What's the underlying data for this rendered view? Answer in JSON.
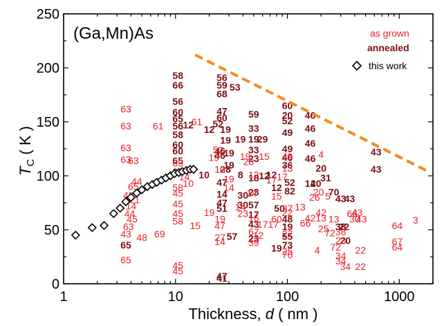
{
  "chart_data": {
    "type": "scatter",
    "title": "(Ga,Mn)As",
    "xlabel": {
      "prefix": "Thickness, ",
      "var": "d",
      "suffix": "  ( nm )"
    },
    "ylabel": {
      "var": "T",
      "sub": "C",
      "suffix": " ( K )"
    },
    "xscale": "log",
    "xlim": [
      1,
      2000
    ],
    "ylim": [
      0,
      250
    ],
    "xticks": [
      1,
      10,
      100,
      1000
    ],
    "xtick_labels": [
      "1",
      "10",
      "100",
      "1000"
    ],
    "yticks": [
      0,
      50,
      100,
      150,
      200,
      250
    ],
    "ytick_labels": [
      "0",
      "50",
      "100",
      "150",
      "200",
      "250"
    ],
    "grid": false,
    "legend_position": "top-right",
    "legend": [
      "as grown",
      "annealed",
      "this work"
    ],
    "colors": {
      "as_grown": "#e8202a",
      "annealed": "#7a0c12",
      "this_work": "#000000",
      "trend": "#f58a1f"
    },
    "series": [
      {
        "name": "as grown",
        "style": "numeric labels (reference numbers)",
        "points": [
          {
            "x": 3.6,
            "y": 162,
            "label": "63"
          },
          {
            "x": 3.6,
            "y": 146,
            "label": "63"
          },
          {
            "x": 3.6,
            "y": 126,
            "label": "63"
          },
          {
            "x": 3.6,
            "y": 115,
            "label": "63"
          },
          {
            "x": 4.2,
            "y": 114,
            "label": "63"
          },
          {
            "x": 4.5,
            "y": 95,
            "label": "44"
          },
          {
            "x": 4.2,
            "y": 90,
            "label": "65"
          },
          {
            "x": 3.8,
            "y": 82,
            "label": "48"
          },
          {
            "x": 4.3,
            "y": 78,
            "label": "21"
          },
          {
            "x": 4.0,
            "y": 72,
            "label": "14"
          },
          {
            "x": 3.9,
            "y": 65,
            "label": "44"
          },
          {
            "x": 4.1,
            "y": 60,
            "label": "45"
          },
          {
            "x": 3.8,
            "y": 53,
            "label": "63"
          },
          {
            "x": 3.6,
            "y": 46,
            "label": "43"
          },
          {
            "x": 3.6,
            "y": 22,
            "label": "65"
          },
          {
            "x": 5.0,
            "y": 43,
            "label": "48"
          },
          {
            "x": 7.2,
            "y": 46,
            "label": "69"
          },
          {
            "x": 7.0,
            "y": 146,
            "label": "61"
          },
          {
            "x": 10.5,
            "y": 112,
            "label": "63"
          },
          {
            "x": 10.5,
            "y": 89,
            "label": "58"
          },
          {
            "x": 10.5,
            "y": 84,
            "label": "45"
          },
          {
            "x": 10.5,
            "y": 74,
            "label": "45"
          },
          {
            "x": 10.5,
            "y": 65,
            "label": "45"
          },
          {
            "x": 10.5,
            "y": 58,
            "label": "58"
          },
          {
            "x": 10.5,
            "y": 17,
            "label": "45"
          },
          {
            "x": 10.5,
            "y": 12,
            "label": "45"
          },
          {
            "x": 12.0,
            "y": 99,
            "label": "14"
          },
          {
            "x": 13.0,
            "y": 93,
            "label": "10"
          },
          {
            "x": 15.0,
            "y": 54,
            "label": "15"
          },
          {
            "x": 15.5,
            "y": 150,
            "label": "61"
          },
          {
            "x": 25,
            "y": 106,
            "label": "10"
          },
          {
            "x": 22,
            "y": 117,
            "label": "19"
          },
          {
            "x": 24,
            "y": 124,
            "label": "52"
          },
          {
            "x": 20,
            "y": 66,
            "label": "19"
          },
          {
            "x": 25,
            "y": 60,
            "label": "19"
          },
          {
            "x": 25,
            "y": 54,
            "label": "47"
          },
          {
            "x": 25,
            "y": 43,
            "label": "27"
          },
          {
            "x": 25,
            "y": 39,
            "label": "14"
          },
          {
            "x": 30,
            "y": 89,
            "label": "14"
          },
          {
            "x": 30,
            "y": 97,
            "label": "19"
          },
          {
            "x": 38,
            "y": 71,
            "label": "14"
          },
          {
            "x": 40,
            "y": 65,
            "label": "23"
          },
          {
            "x": 42,
            "y": 118,
            "label": "19"
          },
          {
            "x": 45,
            "y": 113,
            "label": "28"
          },
          {
            "x": 50,
            "y": 101,
            "label": "12"
          },
          {
            "x": 48,
            "y": 84,
            "label": "14"
          },
          {
            "x": 50,
            "y": 61,
            "label": "16"
          },
          {
            "x": 50,
            "y": 48,
            "label": "67"
          },
          {
            "x": 50,
            "y": 38,
            "label": "39"
          },
          {
            "x": 55,
            "y": 45,
            "label": "12"
          },
          {
            "x": 60,
            "y": 55,
            "label": "17"
          },
          {
            "x": 62,
            "y": 118,
            "label": "15"
          },
          {
            "x": 72,
            "y": 96,
            "label": "17"
          },
          {
            "x": 80,
            "y": 81,
            "label": "15"
          },
          {
            "x": 80,
            "y": 60,
            "label": "60"
          },
          {
            "x": 75,
            "y": 55,
            "label": "17"
          },
          {
            "x": 90,
            "y": 99,
            "label": "17"
          },
          {
            "x": 100,
            "y": 118,
            "label": "40"
          },
          {
            "x": 100,
            "y": 107,
            "label": "13"
          },
          {
            "x": 100,
            "y": 66,
            "label": "22"
          },
          {
            "x": 100,
            "y": 46,
            "label": "27"
          },
          {
            "x": 100,
            "y": 30,
            "label": "25"
          },
          {
            "x": 100,
            "y": 27,
            "label": "70"
          },
          {
            "x": 100,
            "y": 70,
            "label": "37"
          },
          {
            "x": 130,
            "y": 71,
            "label": "13"
          },
          {
            "x": 145,
            "y": 56,
            "label": "66"
          },
          {
            "x": 160,
            "y": 61,
            "label": "42"
          },
          {
            "x": 175,
            "y": 80,
            "label": "26"
          },
          {
            "x": 190,
            "y": 85,
            "label": "20"
          },
          {
            "x": 200,
            "y": 120,
            "label": "4"
          },
          {
            "x": 230,
            "y": 81,
            "label": "5"
          },
          {
            "x": 200,
            "y": 61,
            "label": "13"
          },
          {
            "x": 200,
            "y": 66,
            "label": "42"
          },
          {
            "x": 210,
            "y": 51,
            "label": "25"
          },
          {
            "x": 185,
            "y": 31,
            "label": "4"
          },
          {
            "x": 240,
            "y": 47,
            "label": "72"
          },
          {
            "x": 260,
            "y": 60,
            "label": "13"
          },
          {
            "x": 270,
            "y": 34,
            "label": "72"
          },
          {
            "x": 300,
            "y": 48,
            "label": "38"
          },
          {
            "x": 300,
            "y": 40,
            "label": "23"
          },
          {
            "x": 300,
            "y": 26,
            "label": "34"
          },
          {
            "x": 300,
            "y": 21,
            "label": "34"
          },
          {
            "x": 330,
            "y": 16,
            "label": "34"
          },
          {
            "x": 380,
            "y": 65,
            "label": "66"
          },
          {
            "x": 400,
            "y": 60,
            "label": "30"
          },
          {
            "x": 420,
            "y": 66,
            "label": "43"
          },
          {
            "x": 460,
            "y": 60,
            "label": "43"
          },
          {
            "x": 450,
            "y": 31,
            "label": "22"
          },
          {
            "x": 450,
            "y": 16,
            "label": "22"
          },
          {
            "x": 960,
            "y": 54,
            "label": "64"
          },
          {
            "x": 960,
            "y": 39,
            "label": "67"
          },
          {
            "x": 960,
            "y": 34,
            "label": "64"
          },
          {
            "x": 1400,
            "y": 59,
            "label": "3"
          }
        ]
      },
      {
        "name": "annealed",
        "style": "bold numeric labels (reference numbers)",
        "points": [
          {
            "x": 3.6,
            "y": 36,
            "label": "65"
          },
          {
            "x": 10.5,
            "y": 193,
            "label": "58"
          },
          {
            "x": 10.5,
            "y": 184,
            "label": "66"
          },
          {
            "x": 10.5,
            "y": 169,
            "label": "56"
          },
          {
            "x": 10.5,
            "y": 159,
            "label": "60"
          },
          {
            "x": 10.5,
            "y": 153,
            "label": "65"
          },
          {
            "x": 10.5,
            "y": 146,
            "label": "56"
          },
          {
            "x": 10.5,
            "y": 138,
            "label": "58"
          },
          {
            "x": 10.5,
            "y": 129,
            "label": "60"
          },
          {
            "x": 10.5,
            "y": 123,
            "label": "60"
          },
          {
            "x": 10.5,
            "y": 114,
            "label": "65"
          },
          {
            "x": 10.5,
            "y": 104,
            "label": "66"
          },
          {
            "x": 13.0,
            "y": 147,
            "label": "12"
          },
          {
            "x": 18.0,
            "y": 101,
            "label": "10"
          },
          {
            "x": 20,
            "y": 143,
            "label": "12"
          },
          {
            "x": 24,
            "y": 148,
            "label": "52"
          },
          {
            "x": 26,
            "y": 191,
            "label": "56"
          },
          {
            "x": 26,
            "y": 184,
            "label": "59"
          },
          {
            "x": 26,
            "y": 176,
            "label": "68"
          },
          {
            "x": 26,
            "y": 160,
            "label": "47"
          },
          {
            "x": 26,
            "y": 154,
            "label": "60"
          },
          {
            "x": 28,
            "y": 143,
            "label": "19"
          },
          {
            "x": 28,
            "y": 133,
            "label": "19"
          },
          {
            "x": 25,
            "y": 123,
            "label": "46"
          },
          {
            "x": 25,
            "y": 119,
            "label": "46"
          },
          {
            "x": 28,
            "y": 106,
            "label": "28"
          },
          {
            "x": 26,
            "y": 94,
            "label": "47"
          },
          {
            "x": 26,
            "y": 83,
            "label": "14"
          },
          {
            "x": 26,
            "y": 75,
            "label": "47"
          },
          {
            "x": 26,
            "y": 70,
            "label": "51"
          },
          {
            "x": 30,
            "y": 121,
            "label": "19"
          },
          {
            "x": 30,
            "y": 110,
            "label": "19"
          },
          {
            "x": 32,
            "y": 44,
            "label": "57"
          },
          {
            "x": 26,
            "y": 7,
            "label": "47"
          },
          {
            "x": 26,
            "y": 5,
            "label": "41"
          },
          {
            "x": 34,
            "y": 182,
            "label": "53"
          },
          {
            "x": 38,
            "y": 134,
            "label": "19"
          },
          {
            "x": 38,
            "y": 101,
            "label": "8"
          },
          {
            "x": 40,
            "y": 82,
            "label": "30"
          },
          {
            "x": 40,
            "y": 73,
            "label": "30"
          },
          {
            "x": 50,
            "y": 157,
            "label": "59"
          },
          {
            "x": 50,
            "y": 144,
            "label": "33"
          },
          {
            "x": 50,
            "y": 134,
            "label": "19"
          },
          {
            "x": 50,
            "y": 124,
            "label": "33"
          },
          {
            "x": 50,
            "y": 116,
            "label": "23"
          },
          {
            "x": 50,
            "y": 98,
            "label": "18"
          },
          {
            "x": 50,
            "y": 85,
            "label": "23"
          },
          {
            "x": 50,
            "y": 73,
            "label": "57"
          },
          {
            "x": 50,
            "y": 64,
            "label": "17"
          },
          {
            "x": 50,
            "y": 55,
            "label": "43"
          },
          {
            "x": 50,
            "y": 42,
            "label": "23"
          },
          {
            "x": 60,
            "y": 134,
            "label": "29"
          },
          {
            "x": 62,
            "y": 100,
            "label": "12"
          },
          {
            "x": 72,
            "y": 101,
            "label": "12"
          },
          {
            "x": 80,
            "y": 89,
            "label": "12"
          },
          {
            "x": 80,
            "y": 33,
            "label": "19"
          },
          {
            "x": 85,
            "y": 70,
            "label": "50"
          },
          {
            "x": 100,
            "y": 165,
            "label": "60"
          },
          {
            "x": 100,
            "y": 156,
            "label": "20"
          },
          {
            "x": 100,
            "y": 151,
            "label": "52"
          },
          {
            "x": 100,
            "y": 140,
            "label": "49"
          },
          {
            "x": 100,
            "y": 125,
            "label": "49"
          },
          {
            "x": 100,
            "y": 117,
            "label": "46"
          },
          {
            "x": 100,
            "y": 110,
            "label": "36"
          },
          {
            "x": 105,
            "y": 94,
            "label": "52"
          },
          {
            "x": 105,
            "y": 86,
            "label": "82"
          },
          {
            "x": 100,
            "y": 60,
            "label": "48"
          },
          {
            "x": 100,
            "y": 53,
            "label": "19"
          },
          {
            "x": 100,
            "y": 44,
            "label": "55"
          },
          {
            "x": 100,
            "y": 36,
            "label": "73"
          },
          {
            "x": 160,
            "y": 156,
            "label": "46"
          },
          {
            "x": 160,
            "y": 144,
            "label": "46"
          },
          {
            "x": 160,
            "y": 130,
            "label": "46"
          },
          {
            "x": 160,
            "y": 116,
            "label": "46"
          },
          {
            "x": 160,
            "y": 93,
            "label": "14"
          },
          {
            "x": 180,
            "y": 93,
            "label": "20"
          },
          {
            "x": 200,
            "y": 107,
            "label": "20"
          },
          {
            "x": 220,
            "y": 98,
            "label": "31"
          },
          {
            "x": 260,
            "y": 85,
            "label": "70"
          },
          {
            "x": 300,
            "y": 79,
            "label": "43"
          },
          {
            "x": 360,
            "y": 79,
            "label": "43"
          },
          {
            "x": 300,
            "y": 53,
            "label": "38"
          },
          {
            "x": 320,
            "y": 53,
            "label": "22"
          },
          {
            "x": 330,
            "y": 40,
            "label": "20"
          },
          {
            "x": 620,
            "y": 122,
            "label": "43"
          },
          {
            "x": 620,
            "y": 106,
            "label": "43"
          }
        ]
      },
      {
        "name": "this work",
        "style": "open diamond markers",
        "points": [
          {
            "x": 1.28,
            "y": 45
          },
          {
            "x": 1.8,
            "y": 52
          },
          {
            "x": 2.3,
            "y": 54
          },
          {
            "x": 2.8,
            "y": 65
          },
          {
            "x": 3.2,
            "y": 70
          },
          {
            "x": 3.6,
            "y": 76
          },
          {
            "x": 4.0,
            "y": 80
          },
          {
            "x": 4.5,
            "y": 84
          },
          {
            "x": 5.0,
            "y": 87
          },
          {
            "x": 5.6,
            "y": 90
          },
          {
            "x": 6.2,
            "y": 92
          },
          {
            "x": 6.8,
            "y": 94
          },
          {
            "x": 7.5,
            "y": 96
          },
          {
            "x": 8.2,
            "y": 98
          },
          {
            "x": 9.0,
            "y": 100
          },
          {
            "x": 9.8,
            "y": 102
          },
          {
            "x": 10.7,
            "y": 103
          },
          {
            "x": 11.5,
            "y": 104
          },
          {
            "x": 12.5,
            "y": 105
          },
          {
            "x": 13.5,
            "y": 106
          },
          {
            "x": 14.5,
            "y": 106
          }
        ]
      }
    ],
    "trend_line": {
      "style": "dashed",
      "from": {
        "x": 15,
        "y": 212
      },
      "to": {
        "x": 1900,
        "y": 103
      }
    }
  }
}
